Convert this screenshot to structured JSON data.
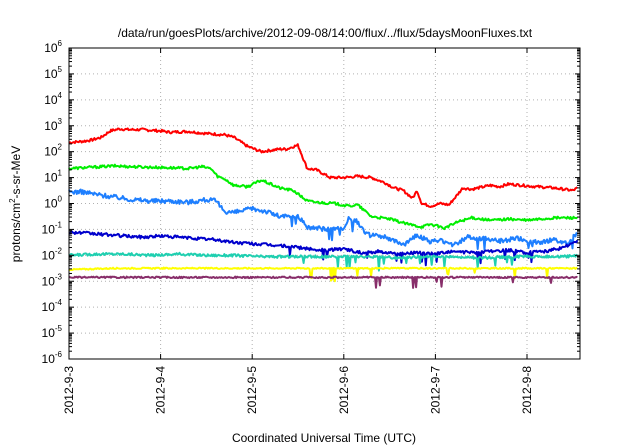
{
  "chart_data": {
    "type": "line",
    "title": "/data/run/goesPlots/archive/2012-09-08/14:00/flux/../flux/5daysMoonFluxes.txt",
    "xlabel": "Coordinated Universal Time (UTC)",
    "ylabel_parts": [
      "protons/cm",
      "2",
      "-s-sr-MeV"
    ],
    "y_scale": "log",
    "ylim_exp": [
      -6,
      6
    ],
    "y_ticks": [
      {
        "base": "10",
        "exp": "6"
      },
      {
        "base": "10",
        "exp": "5"
      },
      {
        "base": "10",
        "exp": "4"
      },
      {
        "base": "10",
        "exp": "3"
      },
      {
        "base": "10",
        "exp": "2"
      },
      {
        "base": "10",
        "exp": "1"
      },
      {
        "base": "10",
        "exp": "0"
      },
      {
        "base": "10",
        "exp": "-1"
      },
      {
        "base": "10",
        "exp": "-2"
      },
      {
        "base": "10",
        "exp": "-3"
      },
      {
        "base": "10",
        "exp": "-4"
      },
      {
        "base": "10",
        "exp": "-5"
      },
      {
        "base": "10",
        "exp": "-6"
      }
    ],
    "x_ticks": [
      "2012-9-3",
      "2012-9-4",
      "2012-9-5",
      "2012-9-6",
      "2012-9-7",
      "2012-9-8"
    ],
    "xlim_days": [
      0,
      5.55
    ],
    "grid": true,
    "series": [
      {
        "color": "#ff0000",
        "points": [
          [
            0,
            2.35
          ],
          [
            0.15,
            2.4
          ],
          [
            0.25,
            2.45
          ],
          [
            0.35,
            2.55
          ],
          [
            0.45,
            2.8
          ],
          [
            0.55,
            2.88
          ],
          [
            0.65,
            2.85
          ],
          [
            0.8,
            2.85
          ],
          [
            1.0,
            2.8
          ],
          [
            1.1,
            2.75
          ],
          [
            1.3,
            2.78
          ],
          [
            1.5,
            2.7
          ],
          [
            1.7,
            2.65
          ],
          [
            1.8,
            2.55
          ],
          [
            1.95,
            2.2
          ],
          [
            2.1,
            2.0
          ],
          [
            2.3,
            2.1
          ],
          [
            2.38,
            2.1
          ],
          [
            2.45,
            2.2
          ],
          [
            2.5,
            2.25
          ],
          [
            2.6,
            1.35
          ],
          [
            2.7,
            1.3
          ],
          [
            2.85,
            1.0
          ],
          [
            3.0,
            1.0
          ],
          [
            3.15,
            1.05
          ],
          [
            3.3,
            1.0
          ],
          [
            3.45,
            0.8
          ],
          [
            3.55,
            0.6
          ],
          [
            3.65,
            0.5
          ],
          [
            3.7,
            0.35
          ],
          [
            3.75,
            0.2
          ],
          [
            3.8,
            0.5
          ],
          [
            3.85,
            0.0
          ],
          [
            3.95,
            -0.1
          ],
          [
            4.05,
            0.0
          ],
          [
            4.15,
            -0.05
          ],
          [
            4.3,
            0.6
          ],
          [
            4.4,
            0.55
          ],
          [
            4.6,
            0.7
          ],
          [
            4.7,
            0.65
          ],
          [
            4.8,
            0.75
          ],
          [
            4.95,
            0.7
          ],
          [
            5.1,
            0.65
          ],
          [
            5.3,
            0.6
          ],
          [
            5.4,
            0.55
          ],
          [
            5.5,
            0.5
          ],
          [
            5.55,
            0.6
          ]
        ]
      },
      {
        "color": "#00ee00",
        "points": [
          [
            0,
            1.35
          ],
          [
            0.15,
            1.38
          ],
          [
            0.35,
            1.42
          ],
          [
            0.5,
            1.45
          ],
          [
            0.7,
            1.42
          ],
          [
            0.9,
            1.4
          ],
          [
            1.1,
            1.38
          ],
          [
            1.3,
            1.35
          ],
          [
            1.45,
            1.42
          ],
          [
            1.55,
            1.35
          ],
          [
            1.62,
            1.05
          ],
          [
            1.7,
            0.95
          ],
          [
            1.8,
            0.7
          ],
          [
            1.95,
            0.65
          ],
          [
            2.1,
            0.9
          ],
          [
            2.2,
            0.75
          ],
          [
            2.3,
            0.6
          ],
          [
            2.45,
            0.5
          ],
          [
            2.6,
            0.1
          ],
          [
            2.7,
            0.05
          ],
          [
            2.9,
            0.0
          ],
          [
            3.05,
            -0.1
          ],
          [
            3.15,
            -0.05
          ],
          [
            3.3,
            -0.5
          ],
          [
            3.5,
            -0.6
          ],
          [
            3.7,
            -0.8
          ],
          [
            3.85,
            -0.9
          ],
          [
            3.95,
            -0.8
          ],
          [
            4.1,
            -0.95
          ],
          [
            4.25,
            -0.7
          ],
          [
            4.4,
            -0.55
          ],
          [
            4.6,
            -0.65
          ],
          [
            4.8,
            -0.6
          ],
          [
            5.0,
            -0.65
          ],
          [
            5.15,
            -0.6
          ],
          [
            5.35,
            -0.55
          ],
          [
            5.5,
            -0.55
          ],
          [
            5.55,
            -0.55
          ]
        ]
      },
      {
        "color": "#1e7fff",
        "points": [
          [
            0,
            0.45
          ],
          [
            0.15,
            0.45
          ],
          [
            0.3,
            0.35
          ],
          [
            0.5,
            0.25
          ],
          [
            0.7,
            0.15
          ],
          [
            0.9,
            0.1
          ],
          [
            1.1,
            0.1
          ],
          [
            1.3,
            0.05
          ],
          [
            1.5,
            0.15
          ],
          [
            1.6,
            0.1
          ],
          [
            1.7,
            -0.3
          ],
          [
            1.8,
            -0.35
          ],
          [
            2.0,
            -0.2
          ],
          [
            2.15,
            -0.3
          ],
          [
            2.3,
            -0.5
          ],
          [
            2.5,
            -0.5
          ],
          [
            2.6,
            -0.9
          ],
          [
            2.8,
            -1.0
          ],
          [
            3.0,
            -0.95
          ],
          [
            3.05,
            -0.6
          ],
          [
            3.15,
            -0.7
          ],
          [
            3.25,
            -1.2
          ],
          [
            3.45,
            -1.3
          ],
          [
            3.65,
            -1.6
          ],
          [
            3.8,
            -1.2
          ],
          [
            3.95,
            -1.5
          ],
          [
            4.05,
            -1.4
          ],
          [
            4.2,
            -1.6
          ],
          [
            4.35,
            -1.3
          ],
          [
            4.5,
            -1.35
          ],
          [
            4.7,
            -1.45
          ],
          [
            4.9,
            -1.35
          ],
          [
            5.1,
            -1.5
          ],
          [
            5.3,
            -1.4
          ],
          [
            5.45,
            -1.55
          ],
          [
            5.55,
            -1.1
          ]
        ]
      },
      {
        "color": "#0000cc",
        "points": [
          [
            0,
            -1.1
          ],
          [
            0.2,
            -1.15
          ],
          [
            0.4,
            -1.2
          ],
          [
            0.6,
            -1.25
          ],
          [
            0.8,
            -1.3
          ],
          [
            1.0,
            -1.25
          ],
          [
            1.2,
            -1.3
          ],
          [
            1.4,
            -1.35
          ],
          [
            1.6,
            -1.4
          ],
          [
            1.8,
            -1.5
          ],
          [
            2.0,
            -1.55
          ],
          [
            2.2,
            -1.6
          ],
          [
            2.4,
            -1.65
          ],
          [
            2.6,
            -1.75
          ],
          [
            2.8,
            -1.8
          ],
          [
            3.0,
            -1.75
          ],
          [
            3.2,
            -1.9
          ],
          [
            3.4,
            -1.85
          ],
          [
            3.6,
            -1.95
          ],
          [
            3.8,
            -1.9
          ],
          [
            4.0,
            -1.95
          ],
          [
            4.2,
            -1.85
          ],
          [
            4.4,
            -1.9
          ],
          [
            4.6,
            -1.85
          ],
          [
            4.8,
            -1.8
          ],
          [
            5.0,
            -1.9
          ],
          [
            5.2,
            -1.85
          ],
          [
            5.4,
            -1.7
          ],
          [
            5.55,
            -1.45
          ]
        ]
      },
      {
        "color": "#1fcfb0",
        "points": [
          [
            0,
            -2.0
          ],
          [
            0.3,
            -1.95
          ],
          [
            0.6,
            -1.95
          ],
          [
            0.9,
            -2.0
          ],
          [
            1.2,
            -1.95
          ],
          [
            1.5,
            -2.0
          ],
          [
            1.8,
            -2.0
          ],
          [
            2.1,
            -2.05
          ],
          [
            2.4,
            -2.05
          ],
          [
            2.7,
            -2.05
          ],
          [
            3.0,
            -2.05
          ],
          [
            3.3,
            -2.05
          ],
          [
            3.6,
            -2.1
          ],
          [
            3.9,
            -2.05
          ],
          [
            4.2,
            -2.05
          ],
          [
            4.5,
            -2.1
          ],
          [
            4.8,
            -2.05
          ],
          [
            5.1,
            -2.05
          ],
          [
            5.4,
            -2.05
          ],
          [
            5.55,
            -2.0
          ]
        ]
      },
      {
        "color": "#ffff00",
        "points": [
          [
            0,
            -2.55
          ],
          [
            0.5,
            -2.5
          ],
          [
            1.0,
            -2.5
          ],
          [
            1.5,
            -2.5
          ],
          [
            2.0,
            -2.5
          ],
          [
            2.5,
            -2.5
          ],
          [
            3.0,
            -2.5
          ],
          [
            3.5,
            -2.5
          ],
          [
            4.0,
            -2.5
          ],
          [
            4.5,
            -2.5
          ],
          [
            5.0,
            -2.5
          ],
          [
            5.55,
            -2.5
          ]
        ]
      },
      {
        "color": "#882e6a",
        "points": [
          [
            0,
            -2.85
          ],
          [
            0.5,
            -2.85
          ],
          [
            1.0,
            -2.85
          ],
          [
            1.5,
            -2.85
          ],
          [
            2.0,
            -2.85
          ],
          [
            2.5,
            -2.85
          ],
          [
            3.0,
            -2.85
          ],
          [
            3.5,
            -2.85
          ],
          [
            4.0,
            -2.85
          ],
          [
            4.5,
            -2.85
          ],
          [
            5.0,
            -2.85
          ],
          [
            5.55,
            -2.85
          ]
        ]
      }
    ]
  }
}
